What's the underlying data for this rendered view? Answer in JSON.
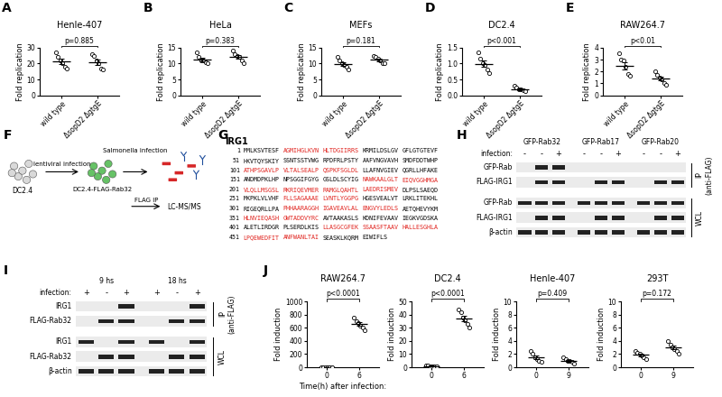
{
  "chart_data": [
    {
      "panel": "A",
      "type": "scatter",
      "title": "Henle-407",
      "y_label": "Fold replication",
      "categories": [
        "wild type",
        "ΔsopD2 ΔgtgE"
      ],
      "groups": [
        {
          "values": [
            27,
            24,
            22,
            20,
            18,
            17
          ],
          "mean": 21.3,
          "sem": 1.5
        },
        {
          "values": [
            26,
            25,
            22,
            20,
            17,
            16
          ],
          "mean": 21.0,
          "sem": 1.7
        }
      ],
      "ylim": [
        0,
        30
      ],
      "yticks": [
        0,
        10,
        20,
        30
      ],
      "p_value": "p=0.885",
      "marker": "o",
      "color": "#000000"
    },
    {
      "panel": "B",
      "type": "scatter",
      "title": "HeLa",
      "y_label": "Fold replication",
      "categories": [
        "wild type",
        "ΔsopD2 ΔgtgE"
      ],
      "groups": [
        {
          "values": [
            13.5,
            12,
            11,
            11,
            10.5,
            10
          ],
          "mean": 11.3,
          "sem": 0.5
        },
        {
          "values": [
            14,
            13,
            12.5,
            12,
            11,
            10
          ],
          "mean": 12.1,
          "sem": 0.6
        }
      ],
      "ylim": [
        0,
        15
      ],
      "yticks": [
        0,
        5,
        10,
        15
      ],
      "p_value": "p=0.383",
      "marker": "o",
      "color": "#000000"
    },
    {
      "panel": "C",
      "type": "scatter",
      "title": "MEFs",
      "y_label": "Fold replication",
      "categories": [
        "wild type",
        "ΔsopD2 ΔgtgE"
      ],
      "groups": [
        {
          "values": [
            12,
            11,
            10,
            9.5,
            9,
            8
          ],
          "mean": 9.9,
          "sem": 0.6
        },
        {
          "values": [
            12.5,
            12,
            11.5,
            11,
            10,
            10
          ],
          "mean": 11.2,
          "sem": 0.4
        }
      ],
      "ylim": [
        0,
        15
      ],
      "yticks": [
        0,
        5,
        10,
        15
      ],
      "p_value": "p=0.181",
      "marker": "o",
      "color": "#000000"
    },
    {
      "panel": "D",
      "type": "scatter",
      "title": "DC2.4",
      "y_label": "Fold replication",
      "categories": [
        "wild type",
        "ΔsopD2 ΔgtgE"
      ],
      "groups": [
        {
          "values": [
            1.35,
            1.15,
            1.0,
            0.95,
            0.8,
            0.7
          ],
          "mean": 0.99,
          "sem": 0.1
        },
        {
          "values": [
            0.3,
            0.25,
            0.2,
            0.18,
            0.15,
            0.12
          ],
          "mean": 0.2,
          "sem": 0.03
        }
      ],
      "ylim": [
        0,
        1.5
      ],
      "yticks": [
        {
          "value": 0,
          "label": "0.0"
        },
        0.5,
        {
          "value": 1,
          "label": "1.0"
        },
        1.5
      ],
      "p_value": "p<0.001",
      "marker": "o",
      "color": "#000000"
    },
    {
      "panel": "E",
      "type": "scatter",
      "title": "RAW264.7",
      "y_label": "Fold replication",
      "categories": [
        "wild type",
        "ΔsopD2 ΔgtgE"
      ],
      "groups": [
        {
          "values": [
            3.5,
            3.0,
            2.9,
            2.4,
            1.8,
            1.6
          ],
          "mean": 2.5,
          "sem": 0.3
        },
        {
          "values": [
            2.0,
            1.7,
            1.5,
            1.3,
            1.0,
            0.9
          ],
          "mean": 1.4,
          "sem": 0.17
        }
      ],
      "ylim": [
        0,
        4
      ],
      "yticks": [
        0,
        1,
        2,
        3,
        4
      ],
      "p_value": "p<0.01",
      "marker": "o",
      "color": "#000000"
    },
    {
      "panel": "J",
      "type": "scatter",
      "title": "RAW264.7",
      "y_label": "Fold induction",
      "x_label": "Time(h) after infection:",
      "categories": [
        "0",
        "6"
      ],
      "groups": [
        {
          "values": [
            1.8,
            1.2,
            1.0,
            0.8,
            0.6,
            0.4
          ],
          "mean": 1.0,
          "sem": 0.2
        },
        {
          "values": [
            760,
            700,
            680,
            640,
            600,
            560
          ],
          "mean": 657,
          "sem": 30
        }
      ],
      "ylim": [
        0,
        1000
      ],
      "yticks": [
        0,
        200,
        400,
        600,
        800,
        1000
      ],
      "p_value": "p<0.0001",
      "marker": "o",
      "color": "#000000"
    },
    {
      "type": "scatter",
      "title": "DC2.4",
      "y_label": "Fold induction",
      "categories": [
        "0",
        "6"
      ],
      "groups": [
        {
          "values": [
            1.5,
            1.1,
            1.0,
            0.8,
            0.6,
            0.5
          ],
          "mean": 0.9,
          "sem": 0.15
        },
        {
          "values": [
            44,
            42,
            38,
            36,
            33,
            30
          ],
          "mean": 37.2,
          "sem": 2.1
        }
      ],
      "ylim": [
        0,
        50
      ],
      "yticks": [
        0,
        10,
        20,
        30,
        40,
        50
      ],
      "p_value": "p<0.0001",
      "marker": "o",
      "color": "#000000"
    },
    {
      "type": "scatter",
      "title": "Henle-407",
      "y_label": "Fold induction",
      "categories": [
        "0",
        "9"
      ],
      "groups": [
        {
          "values": [
            2.5,
            2.0,
            1.5,
            1.2,
            1.0,
            0.8
          ],
          "mean": 1.5,
          "sem": 0.26
        },
        {
          "values": [
            1.5,
            1.2,
            1.0,
            0.9,
            0.8,
            0.6
          ],
          "mean": 1.0,
          "sem": 0.13
        }
      ],
      "ylim": [
        0,
        10
      ],
      "yticks": [
        0,
        2,
        4,
        6,
        8,
        10
      ],
      "p_value": "p=0.409",
      "marker": "o",
      "color": "#000000"
    },
    {
      "type": "scatter",
      "title": "293T",
      "y_label": "Fold induction",
      "categories": [
        "0",
        "9"
      ],
      "groups": [
        {
          "values": [
            2.5,
            2.2,
            2.0,
            1.8,
            1.5,
            1.2
          ],
          "mean": 1.9,
          "sem": 0.19
        },
        {
          "values": [
            4.0,
            3.5,
            3.0,
            2.8,
            2.5,
            2.0
          ],
          "mean": 3.0,
          "sem": 0.29
        }
      ],
      "ylim": [
        0,
        10
      ],
      "yticks": [
        0,
        2,
        4,
        6,
        8,
        10
      ],
      "p_value": "p=0.172",
      "marker": "o",
      "color": "#000000"
    }
  ],
  "diagram": {
    "panel": "F",
    "start_cells": "DC2.4",
    "step1": "lentiviral infection",
    "infected_cells": "DC2.4-FLAG-Rab32",
    "step2": "Salmonella infection",
    "step3": "FLAG IP",
    "readout": "LC-MS/MS"
  },
  "sequence": {
    "panel": "G",
    "title": "IRG1",
    "lines": [
      {
        "start": 1,
        "chunks": [
          "MMLKSVTESF",
          "AGMIHGLKVN",
          "HLTDGIIRRS",
          "KRMILDSLGV",
          "GFLGTGTEVF"
        ],
        "highlighted": [
          false,
          true,
          true,
          false,
          false
        ]
      },
      {
        "start": 51,
        "chunks": [
          "HKVTQYSKIY",
          "SSNTSSTVWG",
          "RPDFRLPSTY",
          "AAFVNGVAVH",
          "SMDFDDTWHP"
        ],
        "highlighted": [
          false,
          false,
          false,
          false,
          false
        ]
      },
      {
        "start": 101,
        "chunks": [
          "ATHPSGAVLP",
          "VLTALSEALP",
          "QSPKFSGLDL",
          "LLAFNVGIEV",
          "QGRLLHFAKE"
        ],
        "highlighted": [
          true,
          true,
          true,
          false,
          false
        ]
      },
      {
        "start": 151,
        "chunks": [
          "ANDMDPKLHP",
          "NPSGGIFGYG",
          "GSLDLSCYIG",
          "NAWKAALGLT",
          "EIQVGGHMGA"
        ],
        "highlighted": [
          false,
          false,
          false,
          true,
          true
        ]
      },
      {
        "start": 201,
        "chunks": [
          "VLQLLMSGSL",
          "RKRIQEVMER",
          "RAMGLQAHTL",
          "LAEDRISMEV",
          "DLPSLSAEQD"
        ],
        "highlighted": [
          true,
          true,
          true,
          true,
          false
        ]
      },
      {
        "start": 251,
        "chunks": [
          "MKPKLVLVHF",
          "FLLSAGAAAE",
          "LVNTLYGGPG",
          "HGESVEALVT",
          "LRKLITEKHL"
        ],
        "highlighted": [
          false,
          true,
          true,
          false,
          false
        ]
      },
      {
        "start": 301,
        "chunks": [
          "RIGEQRLLPA",
          "PHHAARAGGH",
          "IGAVEAVLAL",
          "ENGVYLEDLS",
          "AETQHEVYKM"
        ],
        "highlighted": [
          false,
          true,
          true,
          true,
          false
        ]
      },
      {
        "start": 351,
        "chunks": [
          "HLNVIEQASH",
          "GWTADDVYRC",
          "AVTAAKASLS",
          "KDNIFEVAAV",
          "IEGKVGDSKA"
        ],
        "highlighted": [
          true,
          true,
          false,
          false,
          false
        ]
      },
      {
        "start": 401,
        "chunks": [
          "ALETLIRDGR",
          "PLSERDLKIS",
          "LLASGCGFEK",
          "SSAASFTAAV",
          "HALLESGHLA"
        ],
        "highlighted": [
          false,
          false,
          true,
          true,
          true
        ]
      },
      {
        "start": 451,
        "chunks": [
          "LPQEWEDFIT",
          "ANFWANLTAI",
          "SEASKLKQRM",
          "EIWIFLS"
        ],
        "highlighted": [
          true,
          true,
          false,
          false
        ]
      }
    ]
  },
  "blots": [
    {
      "panel": "H",
      "row_label": "infection:",
      "groups": [
        "GFP-Rab32",
        "GFP-Rab17",
        "GFP-Rab20"
      ],
      "infection": [
        "-",
        "-",
        "+",
        "-",
        "-",
        "+",
        "-",
        "-",
        "+"
      ],
      "sections": [
        {
          "label": "IP (anti-FLAG)",
          "rows": [
            {
              "label": "GFP-Rab",
              "bands": [
                false,
                true,
                true,
                false,
                false,
                false,
                false,
                false,
                false
              ]
            },
            {
              "label": "FLAG-IRG1",
              "bands": [
                false,
                true,
                true,
                false,
                true,
                true,
                false,
                true,
                true
              ]
            }
          ]
        },
        {
          "label": "WCL",
          "rows": [
            {
              "label": "GFP-Rab",
              "bands": [
                true,
                true,
                true,
                true,
                true,
                true,
                true,
                true,
                true
              ]
            },
            {
              "label": "FLAG-IRG1",
              "bands": [
                false,
                true,
                true,
                false,
                true,
                true,
                false,
                true,
                true
              ]
            },
            {
              "label": "β-actin",
              "bands": [
                true,
                true,
                true,
                true,
                true,
                true,
                true,
                true,
                true
              ]
            }
          ]
        }
      ]
    },
    {
      "panel": "I",
      "row_label": "infection:",
      "groups": [
        "9 hs",
        "18 hs"
      ],
      "infection": [
        "+",
        "-",
        "+",
        "+",
        "-",
        "+"
      ],
      "sections": [
        {
          "label": "IP (anti-FLAG)",
          "rows": [
            {
              "label": "IRG1",
              "bands": [
                false,
                false,
                true,
                false,
                false,
                true
              ]
            },
            {
              "label": "FLAG-Rab32",
              "bands": [
                false,
                true,
                true,
                false,
                true,
                true
              ]
            }
          ]
        },
        {
          "label": "WCL",
          "rows": [
            {
              "label": "IRG1",
              "bands": [
                true,
                false,
                true,
                true,
                false,
                true
              ]
            },
            {
              "label": "FLAG-Rab32",
              "bands": [
                false,
                true,
                true,
                false,
                true,
                true
              ]
            },
            {
              "label": "β-actin",
              "bands": [
                true,
                true,
                true,
                true,
                true,
                true
              ]
            }
          ]
        }
      ]
    }
  ]
}
